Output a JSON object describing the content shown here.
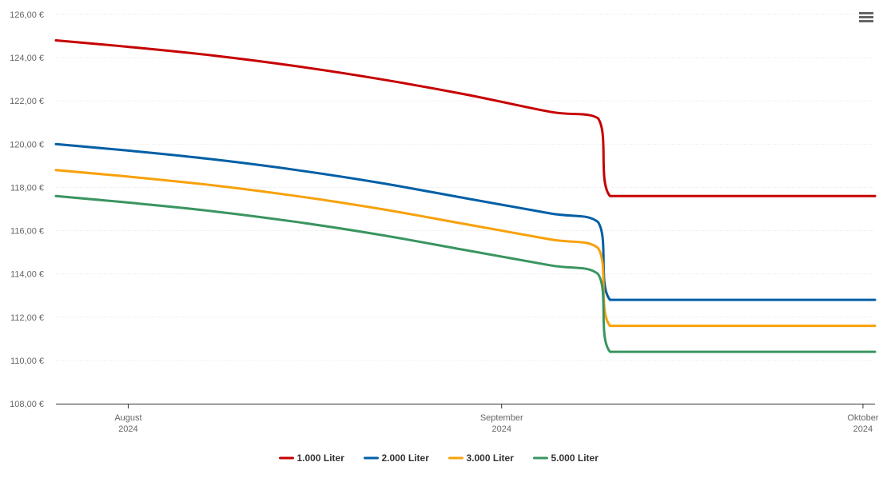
{
  "chart_data": {
    "type": "line",
    "y_ticks": [
      "108,00 €",
      "110,00 €",
      "112,00 €",
      "114,00 €",
      "116,00 €",
      "118,00 €",
      "120,00 €",
      "122,00 €",
      "124,00 €",
      "126,00 €"
    ],
    "ylim": [
      108,
      126
    ],
    "x_range": [
      "2024-07-26",
      "2024-10-02"
    ],
    "x_ticks": [
      {
        "date": "2024-08-01",
        "month": "August",
        "year": "2024"
      },
      {
        "date": "2024-09-01",
        "month": "September",
        "year": "2024"
      },
      {
        "date": "2024-10-01",
        "month": "Oktober",
        "year": "2024"
      }
    ],
    "series": [
      {
        "name": "1.000 Liter",
        "color": "#c60000",
        "points": [
          [
            "2024-07-26",
            124.8
          ],
          [
            "2024-08-01",
            124.5
          ],
          [
            "2024-08-08",
            124.1
          ],
          [
            "2024-08-15",
            123.6
          ],
          [
            "2024-08-22",
            123.0
          ],
          [
            "2024-08-29",
            122.3
          ],
          [
            "2024-09-05",
            121.5
          ],
          [
            "2024-09-09",
            121.2
          ],
          [
            "2024-09-10",
            117.6
          ],
          [
            "2024-10-02",
            117.6
          ]
        ]
      },
      {
        "name": "2.000 Liter",
        "color": "#005fa5",
        "points": [
          [
            "2024-07-26",
            120.0
          ],
          [
            "2024-08-01",
            119.7
          ],
          [
            "2024-08-08",
            119.3
          ],
          [
            "2024-08-15",
            118.8
          ],
          [
            "2024-08-22",
            118.2
          ],
          [
            "2024-08-29",
            117.5
          ],
          [
            "2024-09-05",
            116.8
          ],
          [
            "2024-09-09",
            116.4
          ],
          [
            "2024-09-10",
            112.8
          ],
          [
            "2024-10-02",
            112.8
          ]
        ]
      },
      {
        "name": "3.000 Liter",
        "color": "#f7a10a",
        "points": [
          [
            "2024-07-26",
            118.8
          ],
          [
            "2024-08-01",
            118.5
          ],
          [
            "2024-08-08",
            118.1
          ],
          [
            "2024-08-15",
            117.6
          ],
          [
            "2024-08-22",
            117.0
          ],
          [
            "2024-08-29",
            116.3
          ],
          [
            "2024-09-05",
            115.6
          ],
          [
            "2024-09-09",
            115.2
          ],
          [
            "2024-09-10",
            111.6
          ],
          [
            "2024-10-02",
            111.6
          ]
        ]
      },
      {
        "name": "5.000 Liter",
        "color": "#3a9560",
        "points": [
          [
            "2024-07-26",
            117.6
          ],
          [
            "2024-08-01",
            117.3
          ],
          [
            "2024-08-08",
            116.9
          ],
          [
            "2024-08-15",
            116.4
          ],
          [
            "2024-08-22",
            115.8
          ],
          [
            "2024-08-29",
            115.1
          ],
          [
            "2024-09-05",
            114.4
          ],
          [
            "2024-09-09",
            114.0
          ],
          [
            "2024-09-10",
            110.4
          ],
          [
            "2024-10-02",
            110.4
          ]
        ]
      }
    ],
    "grid": true,
    "legend_position": "bottom-center"
  },
  "menu_icon": "hamburger-menu-icon"
}
